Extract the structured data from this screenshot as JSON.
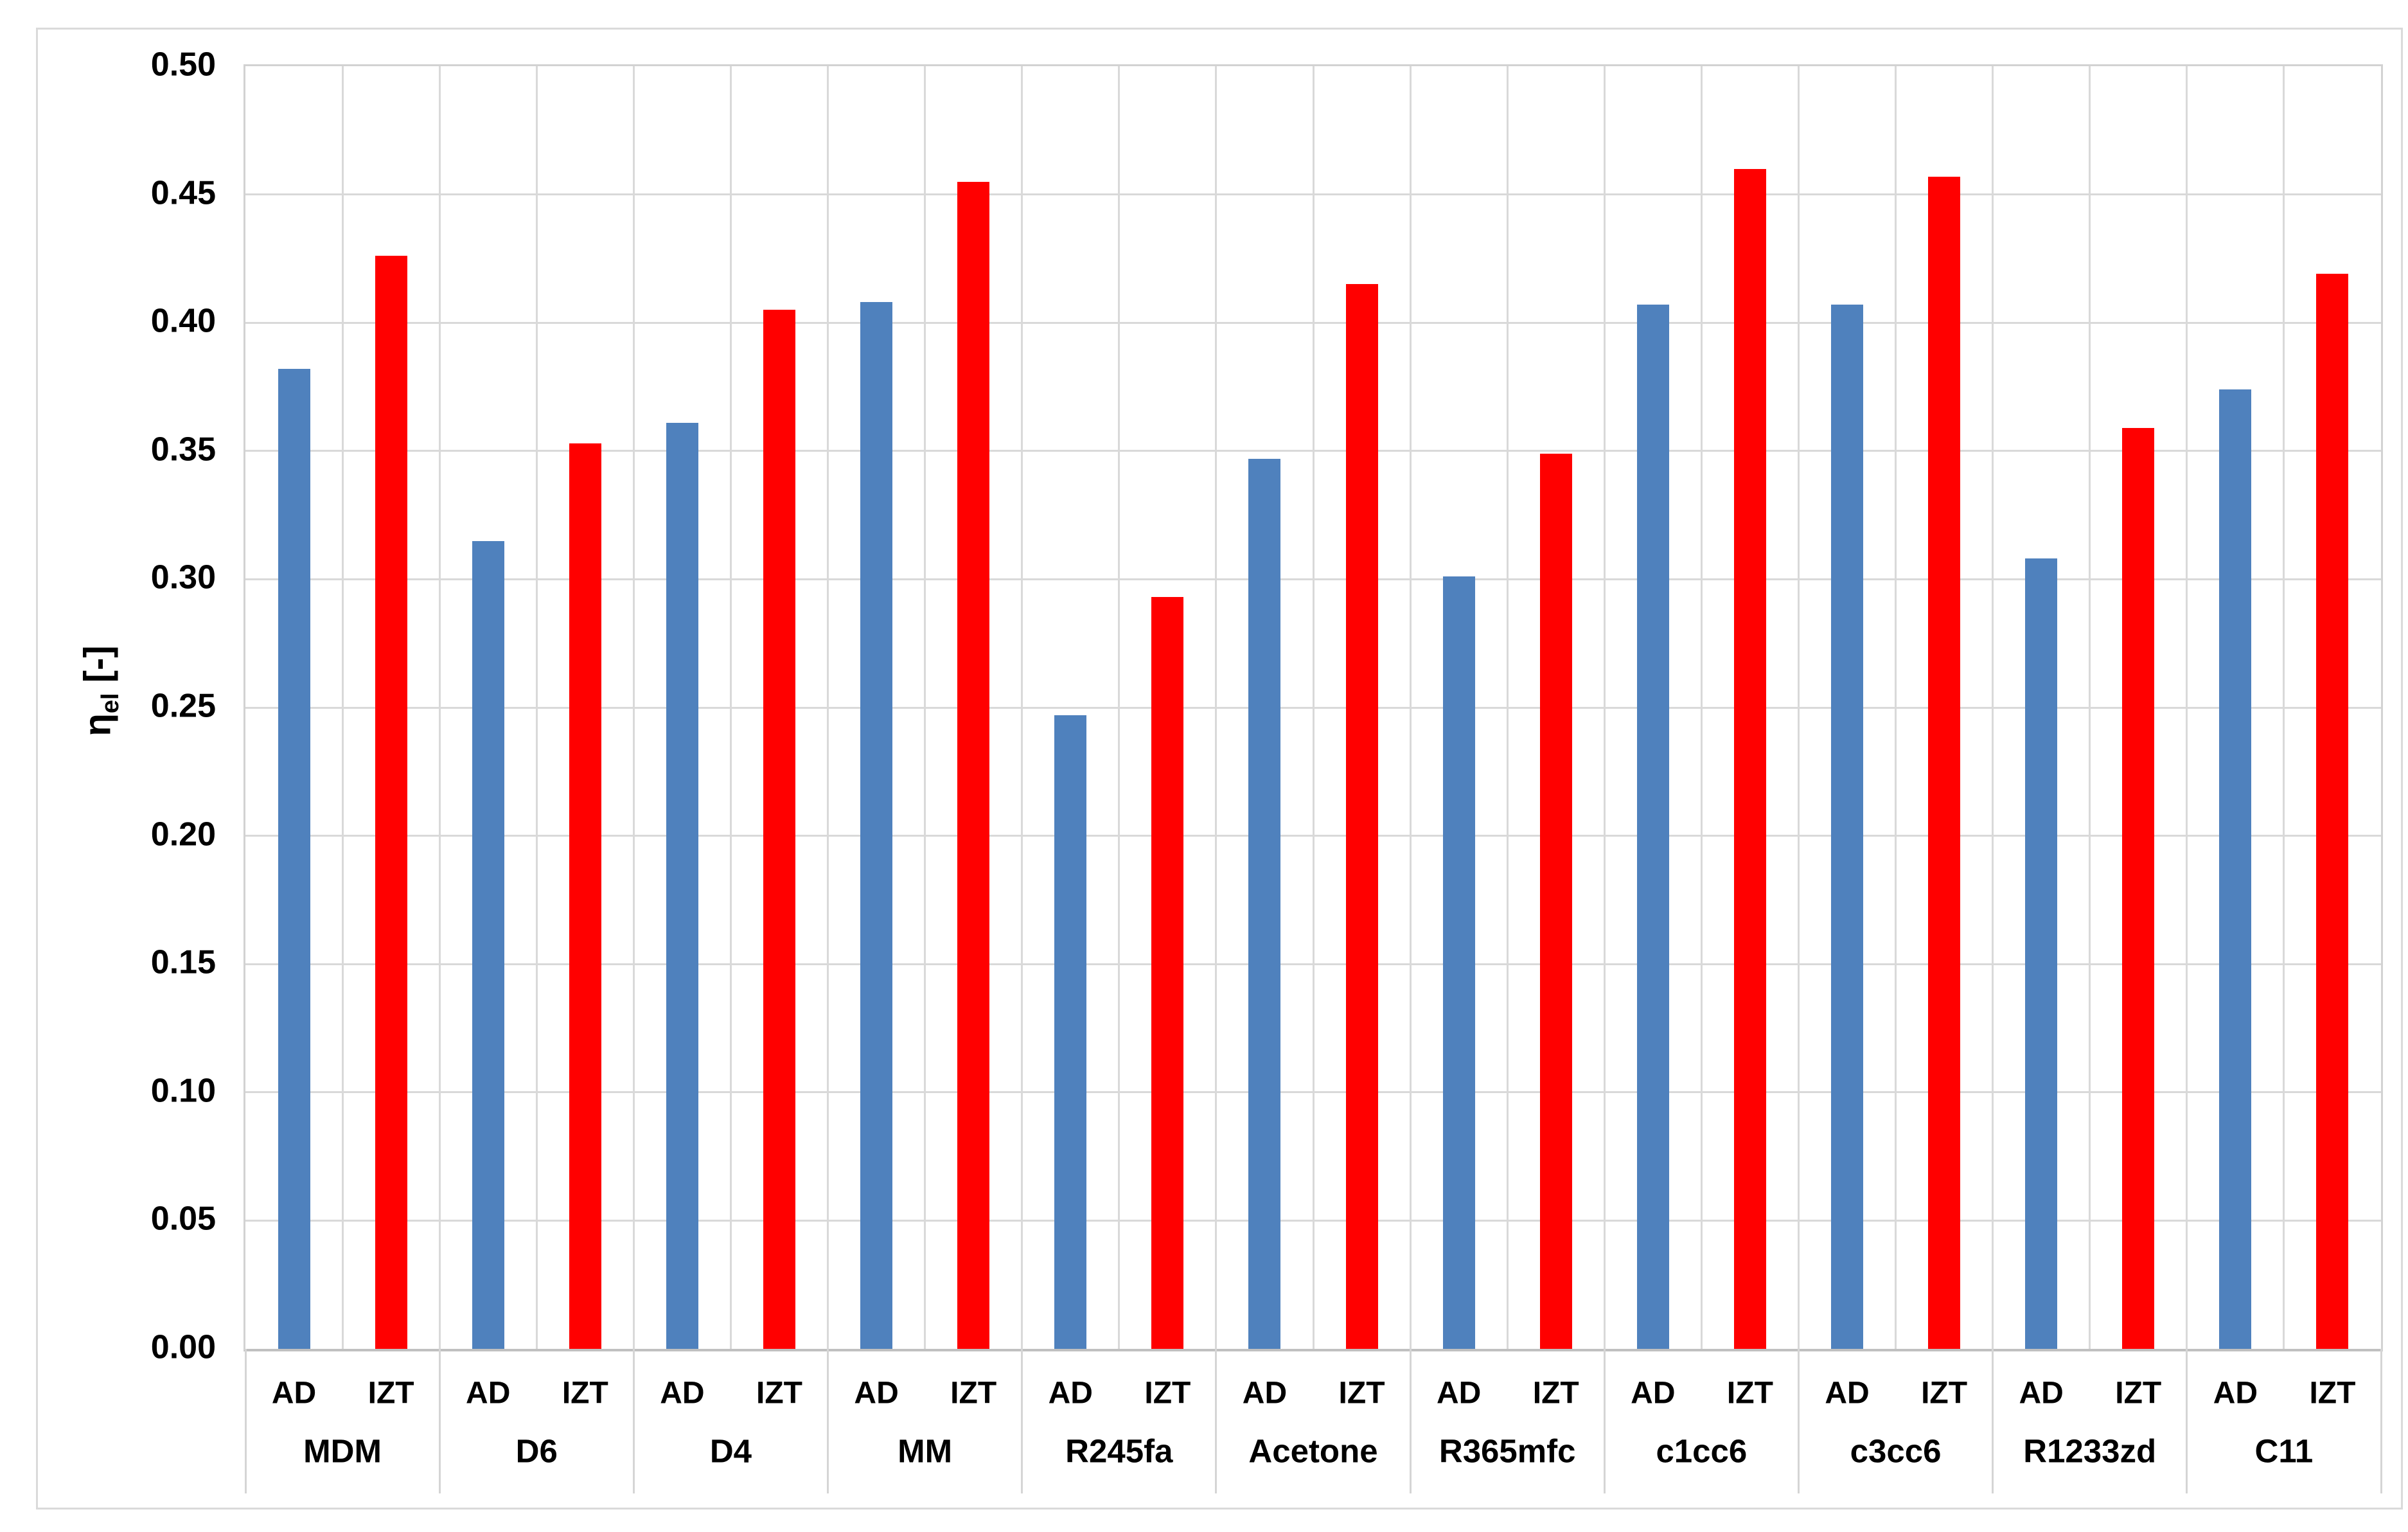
{
  "chart_data": {
    "type": "bar",
    "title": "",
    "ylabel_symbol": "η",
    "ylabel_subscript": "el",
    "ylabel_unit": " [-]",
    "ylim": [
      0,
      0.5
    ],
    "ytick_step": 0.05,
    "yticks": [
      {
        "value": 0.0,
        "label": "0.00"
      },
      {
        "value": 0.05,
        "label": "0.05"
      },
      {
        "value": 0.1,
        "label": "0.10"
      },
      {
        "value": 0.15,
        "label": "0.15"
      },
      {
        "value": 0.2,
        "label": "0.20"
      },
      {
        "value": 0.25,
        "label": "0.25"
      },
      {
        "value": 0.3,
        "label": "0.30"
      },
      {
        "value": 0.35,
        "label": "0.35"
      },
      {
        "value": 0.4,
        "label": "0.40"
      },
      {
        "value": 0.45,
        "label": "0.45"
      },
      {
        "value": 0.5,
        "label": "0.50"
      }
    ],
    "categories": [
      "MDM",
      "D6",
      "D4",
      "MM",
      "R245fa",
      "Acetone",
      "R365mfc",
      "c1cc6",
      "c3cc6",
      "R1233zd",
      "C11"
    ],
    "sub_labels": [
      "AD",
      "IZT"
    ],
    "series": [
      {
        "name": "AD",
        "color": "#4f81bd",
        "values": [
          0.382,
          0.315,
          0.361,
          0.408,
          0.247,
          0.347,
          0.301,
          0.407,
          0.407,
          0.308,
          0.374
        ]
      },
      {
        "name": "IZT",
        "color": "#ff0000",
        "values": [
          0.426,
          0.353,
          0.405,
          0.455,
          0.293,
          0.415,
          0.349,
          0.46,
          0.457,
          0.359,
          0.419
        ]
      }
    ],
    "grid": true,
    "legend_position": "none"
  },
  "colors": {
    "bar_ad": "#4f81bd",
    "bar_izt": "#ff0000",
    "gridline": "#d9d9d9",
    "frame": "#dadada",
    "text": "#000000",
    "background": "#ffffff"
  }
}
